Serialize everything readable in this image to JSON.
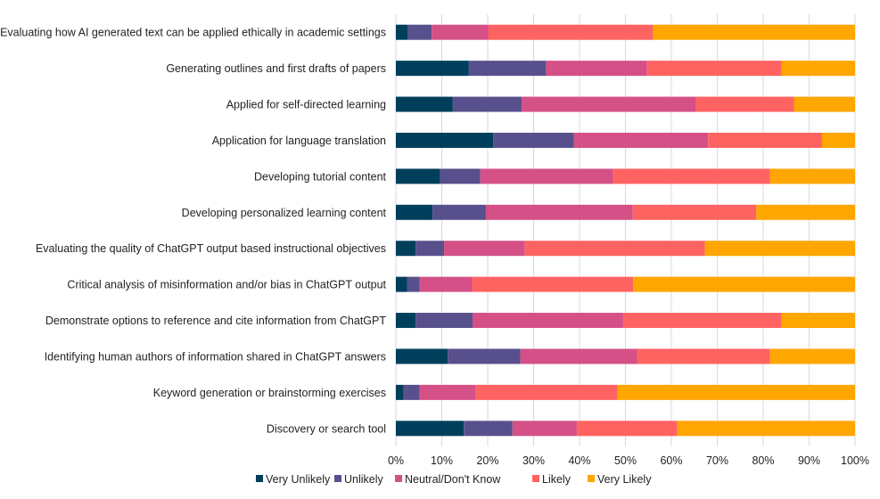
{
  "chart_data": {
    "type": "bar",
    "orientation": "horizontal",
    "stacked": "percent",
    "categories": [
      "Evaluating how AI generated text can be applied ethically in academic settings",
      "Generating outlines and first drafts of papers",
      "Applied for self-directed learning",
      "Application for language translation",
      "Developing tutorial content",
      "Developing personalized learning content",
      "Evaluating the quality of ChatGPT output based instructional objectives",
      "Critical analysis of misinformation and/or bias in ChatGPT output",
      "Demonstrate options to reference and cite information from ChatGPT",
      "Identifying human authors of information shared in ChatGPT answers",
      "Keyword generation or brainstorming exercises",
      "Discovery or search tool"
    ],
    "series": [
      {
        "name": "Very Unlikely",
        "color": "#003f5c",
        "values": [
          2.6,
          15.9,
          12.4,
          21.2,
          9.6,
          8.0,
          4.3,
          2.5,
          4.3,
          11.3,
          1.7,
          14.8
        ]
      },
      {
        "name": "Unlikely",
        "color": "#58508d",
        "values": [
          5.2,
          16.8,
          15.0,
          17.6,
          8.8,
          11.6,
          6.2,
          2.7,
          12.4,
          15.8,
          3.5,
          10.6
        ]
      },
      {
        "name": "Neutral/Don't Know",
        "color": "#d45087",
        "values": [
          12.3,
          22.0,
          38.0,
          29.2,
          28.9,
          32.0,
          17.6,
          11.4,
          32.8,
          25.5,
          12.2,
          14.0
        ]
      },
      {
        "name": "Likely",
        "color": "#ff6361",
        "values": [
          35.9,
          29.3,
          21.3,
          24.8,
          34.2,
          26.9,
          39.2,
          35.1,
          34.5,
          28.9,
          30.9,
          21.9
        ]
      },
      {
        "name": "Very Likely",
        "color": "#ffa600",
        "values": [
          44.0,
          16.0,
          13.3,
          7.2,
          18.5,
          21.5,
          32.7,
          48.3,
          16.0,
          18.5,
          51.7,
          38.7
        ]
      }
    ],
    "xlim": [
      0,
      100
    ],
    "xticks": [
      "0%",
      "10%",
      "20%",
      "30%",
      "40%",
      "50%",
      "60%",
      "70%",
      "80%",
      "90%",
      "100%"
    ],
    "grid": "vertical",
    "legend": "bottom",
    "title": "",
    "xlabel": "",
    "ylabel": ""
  }
}
